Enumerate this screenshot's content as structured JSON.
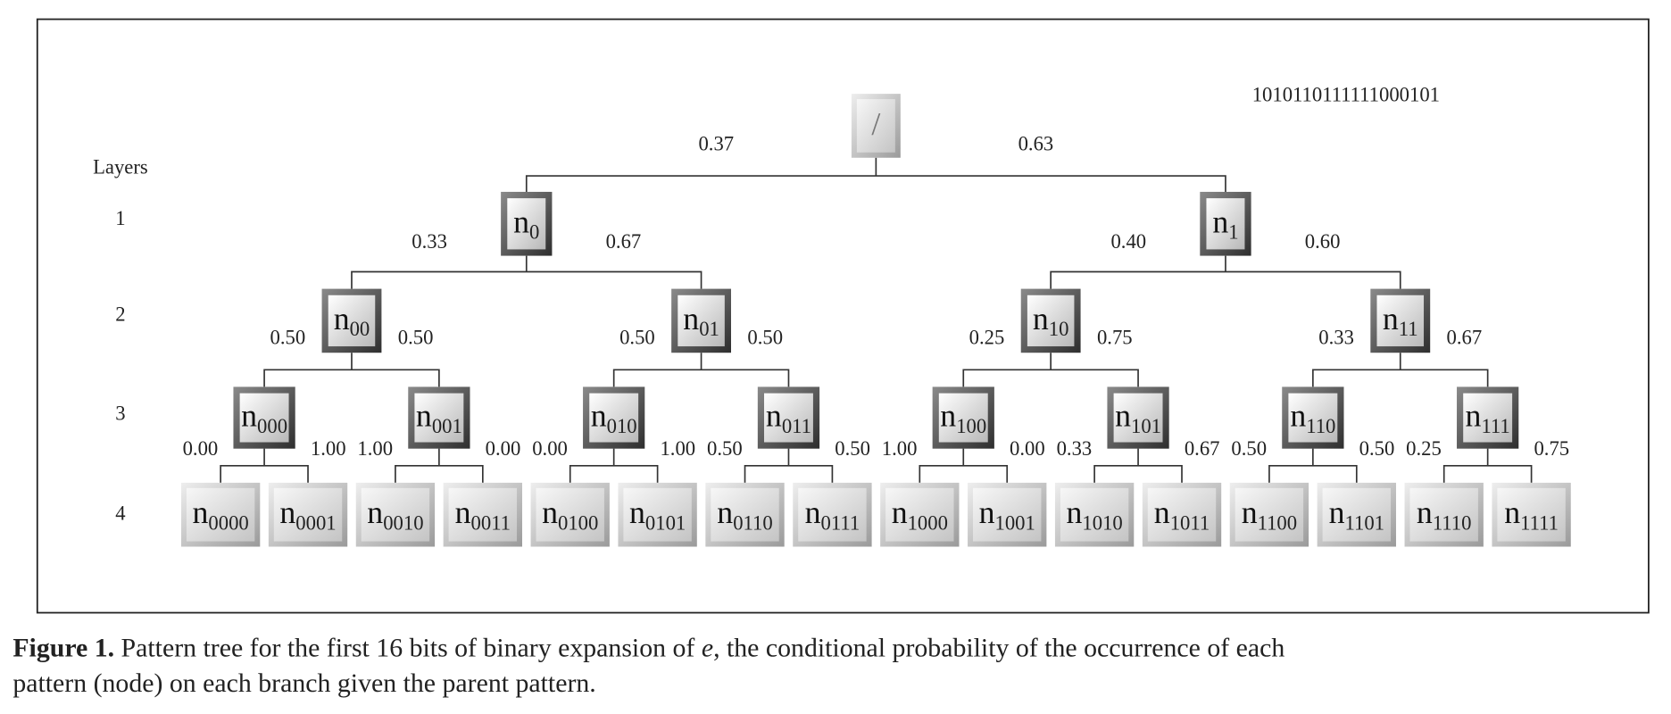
{
  "bitstring": "1010110111111000101",
  "layers_heading": "Layers",
  "root": {
    "label": "/"
  },
  "layers": [
    {
      "label": "1",
      "nodes": [
        {
          "label": "n",
          "sub": "0"
        },
        {
          "label": "n",
          "sub": "1"
        }
      ],
      "probs": [
        "0.37",
        "0.63"
      ]
    },
    {
      "label": "2",
      "nodes": [
        {
          "label": "n",
          "sub": "00"
        },
        {
          "label": "n",
          "sub": "01"
        },
        {
          "label": "n",
          "sub": "10"
        },
        {
          "label": "n",
          "sub": "11"
        }
      ],
      "probs": [
        "0.33",
        "0.67",
        "0.40",
        "0.60"
      ]
    },
    {
      "label": "3",
      "nodes": [
        {
          "label": "n",
          "sub": "000"
        },
        {
          "label": "n",
          "sub": "001"
        },
        {
          "label": "n",
          "sub": "010"
        },
        {
          "label": "n",
          "sub": "011"
        },
        {
          "label": "n",
          "sub": "100"
        },
        {
          "label": "n",
          "sub": "101"
        },
        {
          "label": "n",
          "sub": "110"
        },
        {
          "label": "n",
          "sub": "111"
        }
      ],
      "probs": [
        "0.50",
        "0.50",
        "0.50",
        "0.50",
        "0.25",
        "0.75",
        "0.33",
        "0.67"
      ]
    },
    {
      "label": "4",
      "nodes": [
        {
          "label": "n",
          "sub": "0000"
        },
        {
          "label": "n",
          "sub": "0001"
        },
        {
          "label": "n",
          "sub": "0010"
        },
        {
          "label": "n",
          "sub": "0011"
        },
        {
          "label": "n",
          "sub": "0100"
        },
        {
          "label": "n",
          "sub": "0101"
        },
        {
          "label": "n",
          "sub": "0110"
        },
        {
          "label": "n",
          "sub": "0111"
        },
        {
          "label": "n",
          "sub": "1000"
        },
        {
          "label": "n",
          "sub": "1001"
        },
        {
          "label": "n",
          "sub": "1010"
        },
        {
          "label": "n",
          "sub": "1011"
        },
        {
          "label": "n",
          "sub": "1100"
        },
        {
          "label": "n",
          "sub": "1101"
        },
        {
          "label": "n",
          "sub": "1110"
        },
        {
          "label": "n",
          "sub": "1111"
        }
      ],
      "probs": [
        "0.00",
        "1.00",
        "1.00",
        "0.00",
        "0.00",
        "1.00",
        "0.50",
        "0.50",
        "1.00",
        "0.00",
        "0.33",
        "0.67",
        "0.50",
        "0.50",
        "0.25",
        "0.75"
      ]
    }
  ],
  "caption": {
    "label": "Figure 1.",
    "before": " Pattern tree for the first 16 bits of binary expansion of ",
    "variable": "e",
    "after": ", the conditional probability of the occurrence of each",
    "line2": "pattern (node) on each branch given the parent pattern."
  }
}
